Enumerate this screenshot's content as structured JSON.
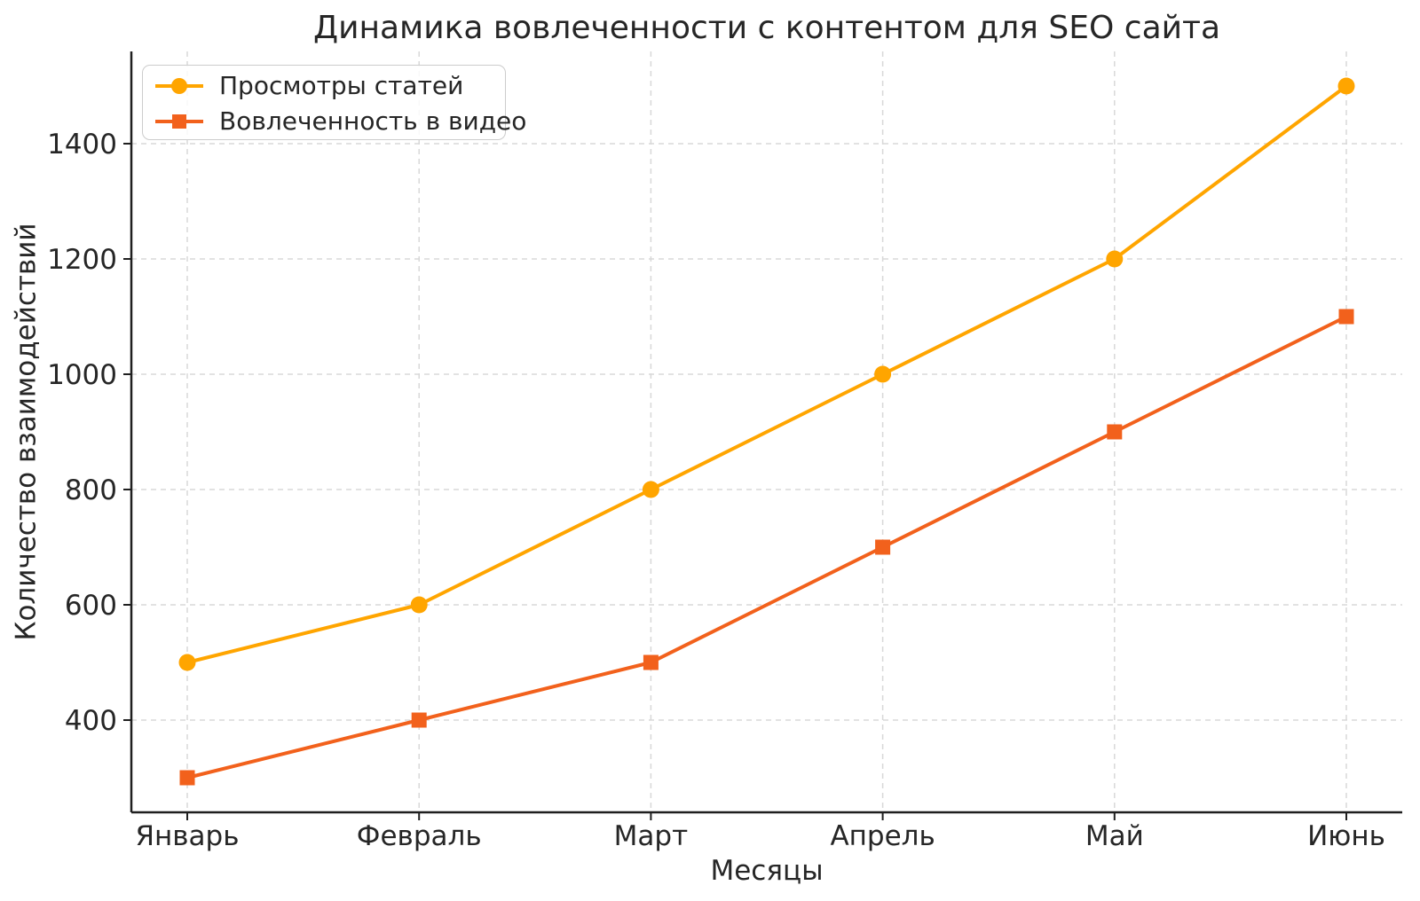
{
  "chart_data": {
    "type": "line",
    "title": "Динамика вовлеченности с контентом для SEO сайта",
    "xlabel": "Месяцы",
    "ylabel": "Количество взаимодействий",
    "categories": [
      "Январь",
      "Февраль",
      "Март",
      "Апрель",
      "Май",
      "Июнь"
    ],
    "series": [
      {
        "name": "Просмотры статей",
        "values": [
          500,
          600,
          800,
          1000,
          1200,
          1500
        ],
        "color": "#FFA500",
        "marker": "circle"
      },
      {
        "name": "Вовлеченность в видео",
        "values": [
          300,
          400,
          500,
          700,
          900,
          1100
        ],
        "color": "#F2611C",
        "marker": "square"
      }
    ],
    "yticks": [
      400,
      600,
      800,
      1000,
      1200,
      1400
    ],
    "ylim": [
      240,
      1560
    ],
    "grid": "dashed",
    "grid_color": "#d8d8d8",
    "axis_color": "#1f1f1f",
    "text_color": "#262626",
    "legend_position": "upper-left",
    "background": "#ffffff"
  }
}
